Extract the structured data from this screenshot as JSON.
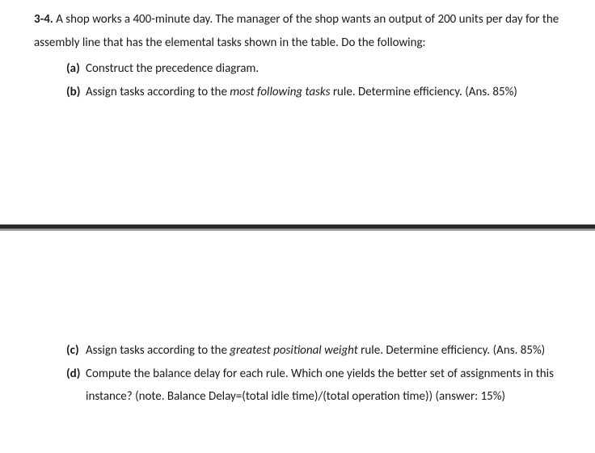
{
  "problem": {
    "number": "3-4.",
    "intro": " A shop works a 400-minute day. The manager of the shop wants an output of 200 units per day for the assembly line that has the elemental tasks shown in the table. Do the following:"
  },
  "items": {
    "a": {
      "letter": "(a)",
      "text": "Construct the precedence diagram."
    },
    "b": {
      "letter": "(b)",
      "prefix": "Assign tasks according to the ",
      "italic": "most following tasks",
      "suffix": " rule. Determine efficiency. (Ans. 85%)"
    },
    "c": {
      "letter": "(c)",
      "prefix": "Assign tasks according to the ",
      "italic": "greatest positional weight",
      "suffix": " rule. Determine efficiency. (Ans. 85%)"
    },
    "d": {
      "letter": "(d)",
      "text": "Compute the balance delay for each rule. Which one yields the better set of assignments in this instance? (note. Balance Delay=(total idle time)/(total operation time)) (answer: 15%)"
    }
  }
}
